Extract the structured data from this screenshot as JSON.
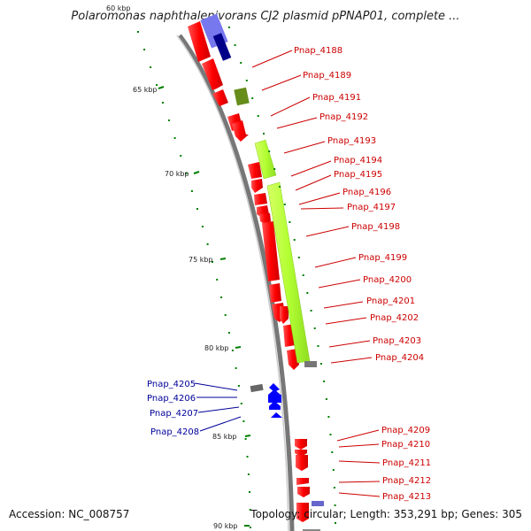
{
  "title": "Polaromonas naphthalenivorans CJ2 plasmid pPNAP01, complete ...",
  "accession": "Accession: NC_008757",
  "topology": "Topology: circular; Length: 353,291 bp; Genes: 305",
  "kbp_labels": [
    "60 kbp",
    "65 kbp",
    "70 kbp",
    "75 kbp",
    "80 kbp",
    "85 kbp",
    "90 kbp"
  ],
  "genes_right": [
    "Pnap_4188",
    "Pnap_4189",
    "Pnap_4191",
    "Pnap_4192",
    "Pnap_4193",
    "Pnap_4194",
    "Pnap_4195",
    "Pnap_4196",
    "Pnap_4197",
    "Pnap_4198",
    "Pnap_4199",
    "Pnap_4200",
    "Pnap_4201",
    "Pnap_4202",
    "Pnap_4203",
    "Pnap_4204",
    "Pnap_4209",
    "Pnap_4210",
    "Pnap_4211",
    "Pnap_4212",
    "Pnap_4213"
  ],
  "genes_left": [
    "Pnap_4205",
    "Pnap_4206",
    "Pnap_4207",
    "Pnap_4208"
  ],
  "colors": {
    "forward_cds": "#ff0000",
    "reverse_cds": "#0000ff",
    "highlight_green": "#b3ff33",
    "dark_green": "#668c1a",
    "backbone": "#999999",
    "tick": "#008000",
    "label_red": "#cc0000",
    "label_blue": "#000099"
  }
}
